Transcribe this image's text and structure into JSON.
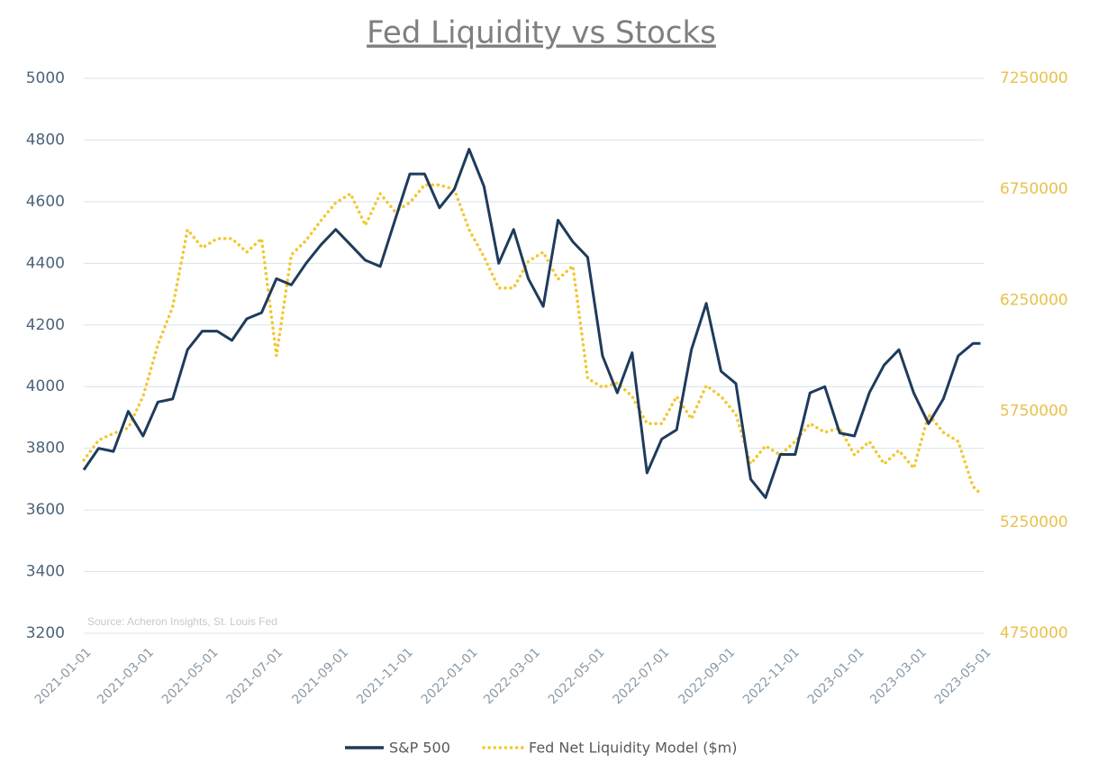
{
  "chart_data": {
    "type": "line",
    "title": "Fed Liquidity vs Stocks",
    "source": "Source: Acheron Insights, St. Louis Fed",
    "x": [
      "2021-01-01",
      "2021-01-15",
      "2021-01-29",
      "2021-02-12",
      "2021-02-26",
      "2021-03-12",
      "2021-03-26",
      "2021-04-09",
      "2021-04-23",
      "2021-05-07",
      "2021-05-21",
      "2021-06-04",
      "2021-06-18",
      "2021-07-02",
      "2021-07-16",
      "2021-07-30",
      "2021-08-13",
      "2021-08-27",
      "2021-09-10",
      "2021-09-24",
      "2021-10-08",
      "2021-10-22",
      "2021-11-05",
      "2021-11-19",
      "2021-12-03",
      "2021-12-17",
      "2021-12-31",
      "2022-01-14",
      "2022-01-28",
      "2022-02-11",
      "2022-02-25",
      "2022-03-11",
      "2022-03-25",
      "2022-04-08",
      "2022-04-22",
      "2022-05-06",
      "2022-05-20",
      "2022-06-03",
      "2022-06-17",
      "2022-07-01",
      "2022-07-15",
      "2022-07-29",
      "2022-08-12",
      "2022-08-26",
      "2022-09-09",
      "2022-09-23",
      "2022-10-07",
      "2022-10-21",
      "2022-11-04",
      "2022-11-18",
      "2022-12-02",
      "2022-12-16",
      "2022-12-30",
      "2023-01-13",
      "2023-01-27",
      "2023-02-10",
      "2023-02-24",
      "2023-03-10",
      "2023-03-24",
      "2023-04-07",
      "2023-04-21",
      "2023-04-28"
    ],
    "series": [
      {
        "name": "S&P 500",
        "color": "#1f3b5c",
        "style": "solid",
        "values": [
          3730,
          3800,
          3790,
          3920,
          3840,
          3950,
          3960,
          4120,
          4180,
          4180,
          4150,
          4220,
          4240,
          4350,
          4330,
          4400,
          4460,
          4510,
          4460,
          4410,
          4390,
          4540,
          4690,
          4690,
          4580,
          4640,
          4770,
          4650,
          4400,
          4510,
          4350,
          4260,
          4540,
          4470,
          4420,
          4100,
          3980,
          4110,
          3720,
          3830,
          3860,
          4120,
          4270,
          4050,
          4010,
          3700,
          3640,
          3780,
          3780,
          3980,
          4000,
          3850,
          3840,
          3980,
          4070,
          4120,
          3980,
          3880,
          3960,
          4100,
          4140,
          4140
        ]
      },
      {
        "name": "Fed Net Liquidity Model ($m)",
        "color": "#f2c731",
        "style": "dotted",
        "axis": "y2",
        "values": [
          5530000,
          5620000,
          5650000,
          5675000,
          5817000,
          6050000,
          6220000,
          6568000,
          6487000,
          6528000,
          6528000,
          6467000,
          6528000,
          6000000,
          6455000,
          6520000,
          6609000,
          6690000,
          6730000,
          6588000,
          6730000,
          6650000,
          6690000,
          6770000,
          6770000,
          6750000,
          6568000,
          6447000,
          6305000,
          6305000,
          6426000,
          6467000,
          6345000,
          6405000,
          5898000,
          5858000,
          5878000,
          5817000,
          5695000,
          5695000,
          5817000,
          5716000,
          5866000,
          5817000,
          5736000,
          5513000,
          5594000,
          5553000,
          5614000,
          5695000,
          5655000,
          5675000,
          5553000,
          5614000,
          5513000,
          5574000,
          5493000,
          5736000,
          5655000,
          5614000,
          5412000,
          5380000
        ]
      }
    ],
    "xlim": [
      "2021-01-01",
      "2023-05-01"
    ],
    "xticks": [
      "2021-01-01",
      "2021-03-01",
      "2021-05-01",
      "2021-07-01",
      "2021-09-01",
      "2021-11-01",
      "2022-01-01",
      "2022-03-01",
      "2022-05-01",
      "2022-07-01",
      "2022-09-01",
      "2022-11-01",
      "2023-01-01",
      "2023-03-01",
      "2023-05-01"
    ],
    "ylim": [
      3200,
      5000
    ],
    "yticks": [
      3200,
      3400,
      3600,
      3800,
      4000,
      4200,
      4400,
      4600,
      4800,
      5000
    ],
    "y2lim": [
      4750000,
      7250000
    ],
    "y2ticks": [
      4750000,
      5250000,
      5750000,
      6250000,
      6750000,
      7250000
    ],
    "grid": true,
    "legend": "bottom"
  }
}
